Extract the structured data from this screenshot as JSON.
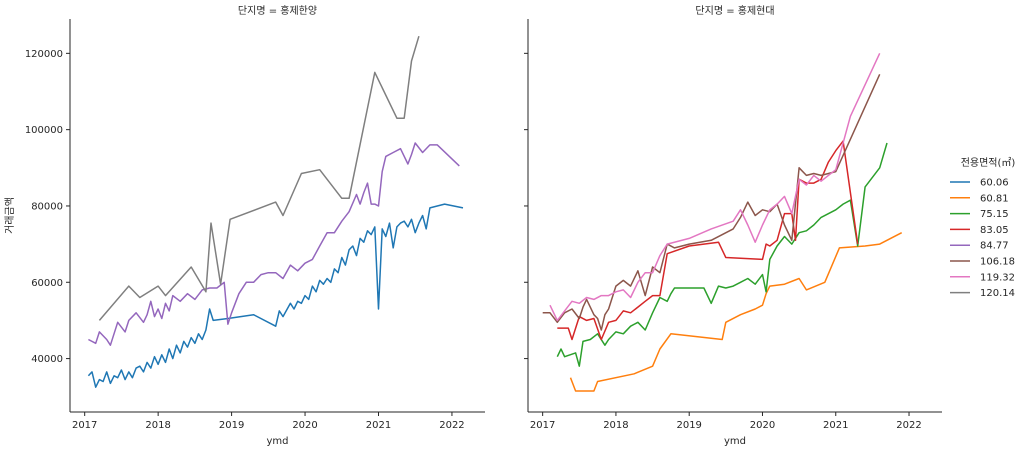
{
  "chart_data": {
    "type": "line",
    "facet_title_prefix": "단지명 = ",
    "xlabel": "ymd",
    "ylabel": "거래금액",
    "xlim": [
      2016.8,
      2022.45
    ],
    "ylim": [
      26000,
      129000
    ],
    "x_ticks": [
      2017,
      2018,
      2019,
      2020,
      2021,
      2022
    ],
    "y_ticks": [
      40000,
      60000,
      80000,
      100000,
      120000
    ],
    "legend": {
      "title": "전용면적(㎡)",
      "placement": "right"
    },
    "series_meta": [
      {
        "name": "60.06",
        "color": "#1f77b4"
      },
      {
        "name": "60.81",
        "color": "#ff7f0e"
      },
      {
        "name": "75.15",
        "color": "#2ca02c"
      },
      {
        "name": "83.05",
        "color": "#d62728"
      },
      {
        "name": "84.77",
        "color": "#9467bd"
      },
      {
        "name": "106.18",
        "color": "#8c564b"
      },
      {
        "name": "119.32",
        "color": "#e377c2"
      },
      {
        "name": "120.14",
        "color": "#7f7f7f"
      }
    ],
    "panels": [
      {
        "title": "홍제한양",
        "series": [
          {
            "name": "60.06",
            "x": [
              2017.05,
              2017.1,
              2017.15,
              2017.2,
              2017.25,
              2017.3,
              2017.35,
              2017.4,
              2017.45,
              2017.5,
              2017.55,
              2017.6,
              2017.65,
              2017.7,
              2017.75,
              2017.8,
              2017.85,
              2017.9,
              2017.95,
              2018.0,
              2018.05,
              2018.1,
              2018.15,
              2018.2,
              2018.25,
              2018.3,
              2018.35,
              2018.4,
              2018.45,
              2018.5,
              2018.55,
              2018.6,
              2018.65,
              2018.7,
              2018.75,
              2018.95,
              2019.3,
              2019.6,
              2019.65,
              2019.7,
              2019.8,
              2019.85,
              2019.9,
              2019.95,
              2020.0,
              2020.05,
              2020.1,
              2020.15,
              2020.2,
              2020.25,
              2020.3,
              2020.35,
              2020.4,
              2020.45,
              2020.5,
              2020.55,
              2020.6,
              2020.65,
              2020.7,
              2020.75,
              2020.8,
              2020.85,
              2020.9,
              2020.95,
              2021.0,
              2021.05,
              2021.1,
              2021.15,
              2021.2,
              2021.25,
              2021.3,
              2021.35,
              2021.4,
              2021.45,
              2021.5,
              2021.55,
              2021.6,
              2021.65,
              2021.7,
              2021.9,
              2022.15
            ],
            "y": [
              35500,
              36500,
              32500,
              34500,
              34000,
              36500,
              33500,
              35500,
              35000,
              37000,
              34500,
              36500,
              35000,
              37500,
              38000,
              36500,
              39000,
              37500,
              40500,
              38500,
              41000,
              39000,
              42500,
              40000,
              43500,
              41500,
              44500,
              43000,
              45500,
              44000,
              46500,
              45000,
              47500,
              53000,
              50000,
              50500,
              51500,
              48500,
              52500,
              51000,
              54500,
              53000,
              55000,
              54500,
              56500,
              55500,
              59000,
              57500,
              60500,
              59500,
              61000,
              60000,
              63500,
              62500,
              66500,
              64500,
              68500,
              69500,
              67000,
              71500,
              70500,
              73500,
              72500,
              74500,
              53000,
              74000,
              72000,
              75500,
              69000,
              74500,
              75500,
              76000,
              74500,
              76500,
              73000,
              75500,
              77500,
              74000,
              79500,
              80500,
              79500
            ]
          },
          {
            "name": "84.77",
            "x": [
              2017.05,
              2017.15,
              2017.2,
              2017.3,
              2017.35,
              2017.45,
              2017.55,
              2017.6,
              2017.7,
              2017.8,
              2017.85,
              2017.9,
              2017.95,
              2018.0,
              2018.05,
              2018.1,
              2018.15,
              2018.2,
              2018.3,
              2018.4,
              2018.5,
              2018.6,
              2018.7,
              2018.8,
              2018.9,
              2018.95,
              2019.0,
              2019.1,
              2019.2,
              2019.3,
              2019.4,
              2019.5,
              2019.6,
              2019.7,
              2019.8,
              2019.9,
              2020.0,
              2020.1,
              2020.2,
              2020.3,
              2020.4,
              2020.5,
              2020.6,
              2020.7,
              2020.75,
              2020.8,
              2020.85,
              2020.9,
              2020.95,
              2021.0,
              2021.05,
              2021.1,
              2021.2,
              2021.3,
              2021.4,
              2021.45,
              2021.5,
              2021.6,
              2021.7,
              2021.8,
              2022.1
            ],
            "y": [
              45000,
              44000,
              47000,
              45000,
              43500,
              49500,
              47000,
              50000,
              52000,
              49500,
              51500,
              55000,
              51000,
              53000,
              50500,
              54500,
              52500,
              56500,
              55000,
              57000,
              55500,
              58000,
              58500,
              58500,
              60000,
              49000,
              52000,
              57000,
              60000,
              60000,
              62000,
              62500,
              62500,
              61000,
              64500,
              63000,
              65000,
              66000,
              69500,
              73000,
              73000,
              76000,
              78500,
              83000,
              80500,
              83500,
              86000,
              80500,
              80500,
              80000,
              89000,
              93000,
              94000,
              95000,
              91000,
              93500,
              96500,
              94000,
              96000,
              96000,
              90500
            ]
          },
          {
            "name": "120.14",
            "x": [
              2017.2,
              2017.6,
              2017.75,
              2018.0,
              2018.1,
              2018.45,
              2018.65,
              2018.72,
              2018.85,
              2018.98,
              2019.6,
              2019.7,
              2019.95,
              2020.2,
              2020.5,
              2020.6,
              2020.95,
              2021.25,
              2021.35,
              2021.45,
              2021.55
            ],
            "y": [
              50000,
              59000,
              56000,
              59000,
              56500,
              64000,
              57500,
              75500,
              59500,
              76500,
              81000,
              77500,
              88500,
              89500,
              82000,
              82000,
              115000,
              103000,
              103000,
              118000,
              124500
            ]
          }
        ]
      },
      {
        "title": "홍제현대",
        "series": [
          {
            "name": "60.81",
            "x": [
              2017.38,
              2017.45,
              2017.7,
              2017.75,
              2018.25,
              2018.5,
              2018.6,
              2018.75,
              2019.45,
              2019.5,
              2019.7,
              2019.9,
              2020.0,
              2020.05,
              2020.1,
              2020.3,
              2020.5,
              2020.6,
              2020.85,
              2021.05,
              2021.4,
              2021.6,
              2021.9
            ],
            "y": [
              35000,
              31500,
              31500,
              34000,
              36000,
              38000,
              42500,
              46500,
              45000,
              49500,
              51500,
              53000,
              54000,
              57000,
              59000,
              59500,
              61000,
              58000,
              60000,
              69000,
              69500,
              70000,
              73000
            ]
          },
          {
            "name": "75.15",
            "x": [
              2017.2,
              2017.25,
              2017.3,
              2017.45,
              2017.5,
              2017.55,
              2017.65,
              2017.75,
              2017.85,
              2017.9,
              2018.0,
              2018.1,
              2018.2,
              2018.3,
              2018.4,
              2018.5,
              2018.6,
              2018.7,
              2018.75,
              2018.8,
              2019.0,
              2019.2,
              2019.3,
              2019.4,
              2019.5,
              2019.6,
              2019.7,
              2019.8,
              2019.9,
              2020.0,
              2020.05,
              2020.1,
              2020.2,
              2020.3,
              2020.4,
              2020.5,
              2020.6,
              2020.7,
              2020.8,
              2021.0,
              2021.1,
              2021.2,
              2021.3,
              2021.4,
              2021.6,
              2021.7
            ],
            "y": [
              40500,
              42500,
              40500,
              41500,
              38000,
              44500,
              45000,
              46500,
              43500,
              45000,
              47000,
              46500,
              48500,
              49500,
              47500,
              52000,
              56000,
              55000,
              57000,
              58500,
              58500,
              58500,
              54500,
              59000,
              58500,
              59000,
              60000,
              61000,
              59500,
              62000,
              57500,
              66000,
              69500,
              72000,
              70000,
              73000,
              73500,
              75000,
              77000,
              79000,
              80500,
              81500,
              69500,
              85000,
              90000,
              96500
            ]
          },
          {
            "name": "83.05",
            "x": [
              2017.2,
              2017.35,
              2017.4,
              2017.5,
              2017.6,
              2017.7,
              2017.8,
              2017.9,
              2018.0,
              2018.1,
              2018.2,
              2018.3,
              2018.4,
              2018.5,
              2018.6,
              2018.7,
              2019.0,
              2019.4,
              2019.5,
              2020.0,
              2020.05,
              2020.1,
              2020.2,
              2020.3,
              2020.4,
              2020.45,
              2020.5,
              2020.6,
              2020.7,
              2020.8,
              2020.9,
              2021.0,
              2021.1,
              2021.3
            ],
            "y": [
              48000,
              48000,
              45000,
              51000,
              50000,
              50500,
              45000,
              49500,
              50000,
              52500,
              52000,
              53500,
              55000,
              56500,
              56500,
              67500,
              69500,
              70500,
              66500,
              66000,
              70000,
              69500,
              71000,
              78000,
              78000,
              71000,
              87000,
              86000,
              86000,
              87000,
              91500,
              94500,
              97000,
              70000
            ]
          },
          {
            "name": "106.18",
            "x": [
              2017.0,
              2017.1,
              2017.2,
              2017.3,
              2017.4,
              2017.5,
              2017.55,
              2017.6,
              2017.7,
              2017.75,
              2017.8,
              2017.85,
              2017.9,
              2018.0,
              2018.1,
              2018.2,
              2018.3,
              2018.4,
              2018.5,
              2018.6,
              2018.7,
              2018.8,
              2018.9,
              2019.0,
              2019.3,
              2019.6,
              2019.7,
              2019.8,
              2019.9,
              2020.0,
              2020.1,
              2020.2,
              2020.3,
              2020.4,
              2020.5,
              2020.6,
              2020.7,
              2020.8,
              2021.0,
              2021.6
            ],
            "y": [
              52000,
              52000,
              49500,
              52000,
              53000,
              50500,
              53500,
              55500,
              51500,
              50500,
              47500,
              51500,
              53000,
              59000,
              60500,
              59000,
              63000,
              56500,
              64000,
              62500,
              70000,
              69000,
              69500,
              70000,
              71000,
              74000,
              77000,
              81000,
              77500,
              79000,
              78500,
              80500,
              75000,
              71000,
              90000,
              88000,
              88500,
              88000,
              89000,
              114500
            ]
          },
          {
            "name": "119.32",
            "x": [
              2017.1,
              2017.2,
              2017.3,
              2017.4,
              2017.5,
              2017.6,
              2017.7,
              2017.8,
              2017.9,
              2018.0,
              2018.1,
              2018.2,
              2018.3,
              2018.4,
              2018.5,
              2018.6,
              2018.7,
              2019.0,
              2019.3,
              2019.6,
              2019.7,
              2019.8,
              2019.9,
              2020.0,
              2020.1,
              2020.2,
              2020.3,
              2020.4,
              2020.5,
              2020.6,
              2020.7,
              2020.8,
              2020.9,
              2021.0,
              2021.2,
              2021.6
            ],
            "y": [
              54000,
              50000,
              52500,
              55000,
              54500,
              56000,
              55500,
              56500,
              56500,
              57500,
              58000,
              56000,
              60000,
              62500,
              62500,
              67000,
              70000,
              71500,
              74000,
              76000,
              79000,
              75000,
              70500,
              75000,
              79000,
              80500,
              82500,
              78000,
              87000,
              85500,
              88000,
              86500,
              88000,
              89500,
              103500,
              120000
            ]
          }
        ]
      }
    ]
  }
}
